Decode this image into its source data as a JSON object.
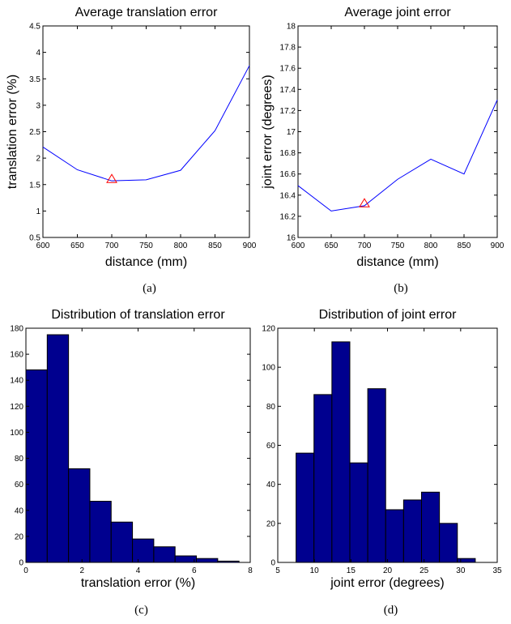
{
  "chart_data": [
    {
      "id": "a",
      "type": "line",
      "title": "Average translation error",
      "xlabel": "distance (mm)",
      "ylabel": "translation error (%)",
      "caption": "(a)",
      "xlim": [
        600,
        900
      ],
      "ylim": [
        0.5,
        4.5
      ],
      "xticks": [
        "600",
        "650",
        "700",
        "750",
        "800",
        "850",
        "900"
      ],
      "yticks": [
        "0.5",
        "1",
        "1.5",
        "2",
        "2.5",
        "3",
        "3.5",
        "4",
        "4.5"
      ],
      "x": [
        600,
        650,
        700,
        750,
        800,
        850,
        900
      ],
      "y": [
        2.21,
        1.78,
        1.57,
        1.59,
        1.77,
        2.52,
        3.75
      ],
      "marker": {
        "x": 700,
        "y": 1.6,
        "shape": "triangle",
        "color": "#ff0000"
      },
      "line_color": "#0000ff"
    },
    {
      "id": "b",
      "type": "line",
      "title": "Average joint error",
      "xlabel": "distance (mm)",
      "ylabel": "joint error (degrees)",
      "caption": "(b)",
      "xlim": [
        600,
        900
      ],
      "ylim": [
        16,
        18
      ],
      "xticks": [
        "600",
        "650",
        "700",
        "750",
        "800",
        "850",
        "900"
      ],
      "yticks": [
        "16",
        "16.2",
        "16.4",
        "16.6",
        "16.8",
        "17",
        "17.2",
        "17.4",
        "17.6",
        "17.8",
        "18"
      ],
      "x": [
        600,
        650,
        700,
        750,
        800,
        850,
        900
      ],
      "y": [
        16.49,
        16.25,
        16.3,
        16.55,
        16.74,
        16.6,
        17.3
      ],
      "marker": {
        "x": 700,
        "y": 16.32,
        "shape": "triangle",
        "color": "#ff0000"
      },
      "line_color": "#0000ff"
    },
    {
      "id": "c",
      "type": "bar",
      "title": "Distribution of translation error",
      "xlabel": "translation error (%)",
      "ylabel": "",
      "caption": "(c)",
      "xlim": [
        0,
        8
      ],
      "ylim": [
        0,
        180
      ],
      "xticks": [
        "0",
        "2",
        "4",
        "6",
        "8"
      ],
      "yticks": [
        "0",
        "20",
        "40",
        "60",
        "80",
        "100",
        "120",
        "140",
        "160",
        "180"
      ],
      "bin_edges": [
        0,
        0.76,
        1.52,
        2.28,
        3.04,
        3.8,
        4.56,
        5.32,
        6.08,
        6.84,
        7.6
      ],
      "values": [
        148,
        175,
        72,
        47,
        31,
        18,
        12,
        5,
        3,
        1
      ],
      "bar_color": "#00008f"
    },
    {
      "id": "d",
      "type": "bar",
      "title": "Distribution of joint error",
      "xlabel": "joint error (degrees)",
      "ylabel": "",
      "caption": "(d)",
      "xlim": [
        5,
        35
      ],
      "ylim": [
        0,
        120
      ],
      "xticks": [
        "5",
        "10",
        "15",
        "20",
        "25",
        "30",
        "35"
      ],
      "yticks": [
        "0",
        "20",
        "40",
        "60",
        "80",
        "100",
        "120"
      ],
      "bin_edges": [
        7.5,
        9.95,
        12.4,
        14.85,
        17.3,
        19.75,
        22.2,
        24.65,
        27.1,
        29.55,
        32.0
      ],
      "values": [
        56,
        86,
        113,
        51,
        89,
        27,
        32,
        36,
        20,
        2
      ],
      "bar_color": "#00008f"
    }
  ]
}
